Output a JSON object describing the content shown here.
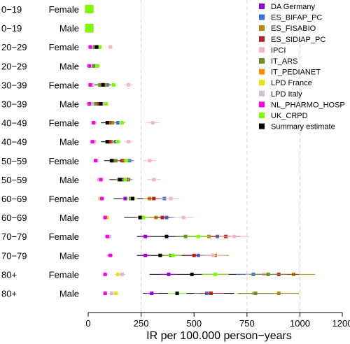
{
  "chart_data": {
    "type": "scatter",
    "xlabel": "IR per 100.000 person−years",
    "xlim": [
      -25,
      1200
    ],
    "xticks": [
      0,
      250,
      500,
      750,
      1000,
      1200
    ],
    "grid_x": [
      250,
      750,
      1000
    ],
    "legend_position": "top-right",
    "rows": [
      {
        "age": "0−19",
        "sex": "Female"
      },
      {
        "age": "0−19",
        "sex": "Male"
      },
      {
        "age": "20−29",
        "sex": "Female"
      },
      {
        "age": "20−29",
        "sex": "Male"
      },
      {
        "age": "30−39",
        "sex": "Female"
      },
      {
        "age": "30−39",
        "sex": "Male"
      },
      {
        "age": "40−49",
        "sex": "Female"
      },
      {
        "age": "40−49",
        "sex": "Male"
      },
      {
        "age": "50−59",
        "sex": "Female"
      },
      {
        "age": "50−59",
        "sex": "Male"
      },
      {
        "age": "60−69",
        "sex": "Female"
      },
      {
        "age": "60−69",
        "sex": "Male"
      },
      {
        "age": "70−79",
        "sex": "Female"
      },
      {
        "age": "70−79",
        "sex": "Male"
      },
      {
        "age": "80+",
        "sex": "Female"
      },
      {
        "age": "80+",
        "sex": "Male"
      }
    ],
    "series": [
      {
        "name": "DA Germany",
        "color": "#9400d3",
        "values": [
          5,
          5,
          45,
          35,
          70,
          65,
          110,
          105,
          115,
          165,
          175,
          245,
          270,
          270,
          380,
          300
        ]
      },
      {
        "name": "ES_BIFAP_PC",
        "color": "#3a6fd8",
        "values": [
          5,
          5,
          40,
          30,
          90,
          55,
          140,
          130,
          195,
          190,
          360,
          370,
          610,
          520,
          780,
          560
        ]
      },
      {
        "name": "ES_FISABIO",
        "color": "#b8860b",
        "values": [
          5,
          5,
          35,
          30,
          80,
          40,
          115,
          110,
          170,
          185,
          290,
          320,
          570,
          600,
          970,
          900
        ]
      },
      {
        "name": "ES_SIDIAP_PC",
        "color": "#b22222",
        "values": [
          5,
          5,
          30,
          25,
          65,
          45,
          100,
          100,
          160,
          180,
          310,
          350,
          650,
          500,
          900,
          580
        ]
      },
      {
        "name": "IPCI",
        "color": "#f4b6c2",
        "values": [
          5,
          5,
          105,
          30,
          190,
          75,
          305,
          190,
          290,
          310,
          390,
          450,
          690,
          590,
          830,
          780
        ]
      },
      {
        "name": "IT_ARS",
        "color": "#6b8e23",
        "values": [
          5,
          5,
          25,
          25,
          55,
          35,
          95,
          90,
          130,
          145,
          200,
          255,
          460,
          390,
          850,
          790
        ]
      },
      {
        "name": "IT_PEDIANET",
        "color": "#ff8c00",
        "values": [
          5,
          5,
          null,
          null,
          null,
          null,
          null,
          null,
          null,
          null,
          null,
          null,
          null,
          null,
          null,
          null
        ]
      },
      {
        "name": "LPD France",
        "color": "#e6e600",
        "values": [
          5,
          5,
          10,
          10,
          15,
          15,
          30,
          30,
          35,
          50,
          55,
          90,
          95,
          100,
          140,
          130
        ]
      },
      {
        "name": "LPD Italy",
        "color": "#d8b8d8",
        "values": [
          5,
          5,
          15,
          10,
          20,
          20,
          30,
          30,
          40,
          50,
          60,
          80,
          100,
          100,
          160,
          110
        ]
      },
      {
        "name": "NL_PHARMO_HOSP",
        "color": "#ff00e6",
        "values": [
          5,
          5,
          10,
          5,
          10,
          5,
          25,
          20,
          35,
          60,
          65,
          80,
          90,
          105,
          80,
          80
        ]
      },
      {
        "name": "UK_CRPD",
        "color": "#7cfc00",
        "values": [
          5,
          5,
          55,
          45,
          120,
          85,
          160,
          140,
          180,
          175,
          210,
          260,
          520,
          400,
          600,
          420
        ]
      },
      {
        "name": "Summary estimate",
        "color": "#000000",
        "values": [
          null,
          null,
          40,
          null,
          70,
          60,
          90,
          90,
          110,
          150,
          210,
          245,
          370,
          340,
          490,
          420
        ],
        "ci_low": [
          null,
          null,
          30,
          null,
          30,
          30,
          60,
          60,
          75,
          100,
          120,
          170,
          230,
          230,
          290,
          260
        ],
        "ci_high": [
          null,
          null,
          60,
          null,
          110,
          80,
          130,
          130,
          190,
          190,
          320,
          340,
          580,
          490,
          850,
          690
        ]
      }
    ]
  }
}
